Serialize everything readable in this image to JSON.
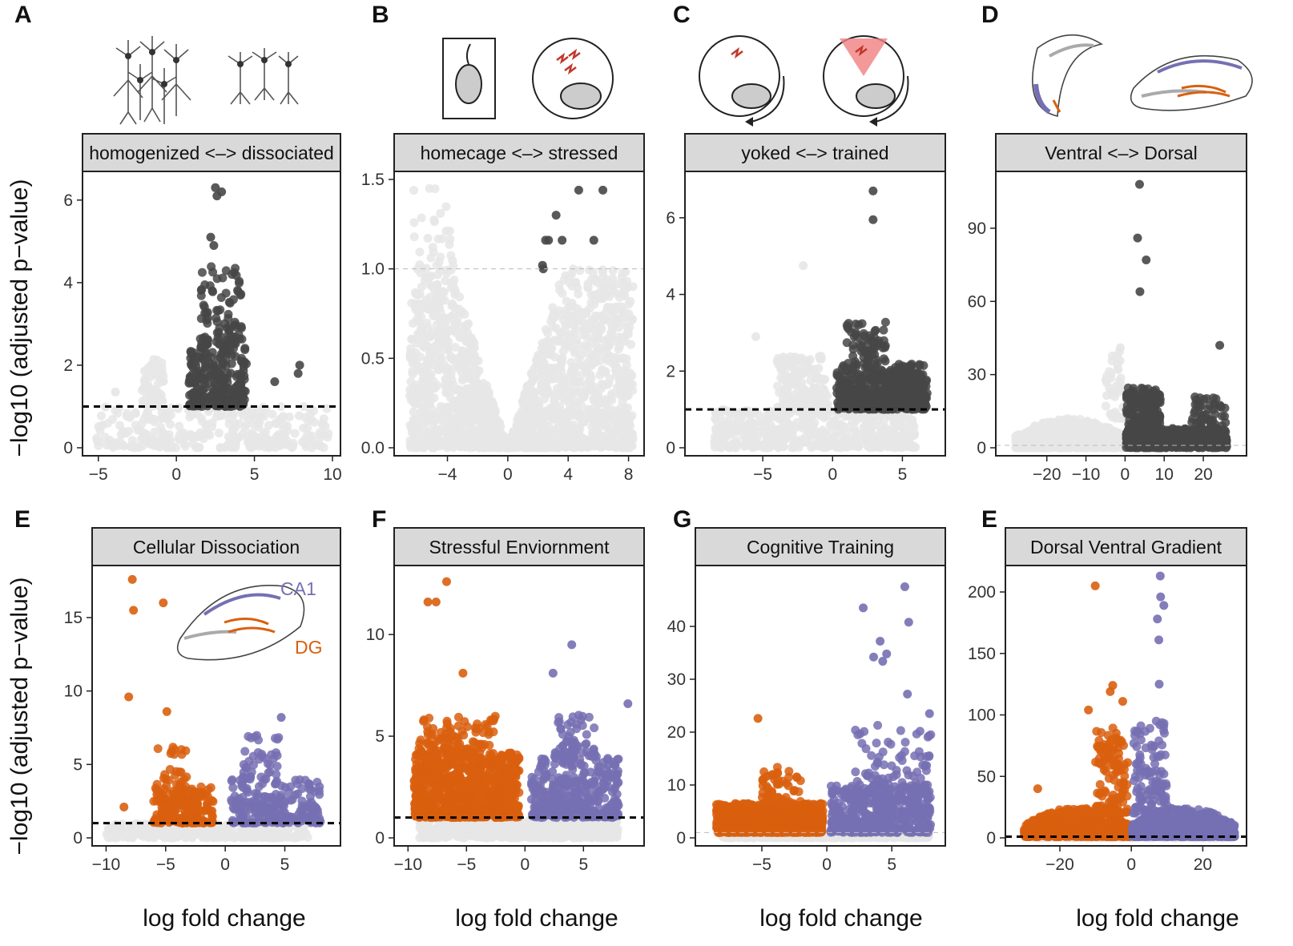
{
  "figure": {
    "ylabel": "−log10 (adjusted p−value)",
    "xlabel": "log fold change",
    "colors": {
      "orange": "#D95F0E",
      "purple": "#7570B3",
      "dark_grey": "#474747",
      "light_grey": "#E6E6E6",
      "strip_fill": "#D9D9D9"
    }
  },
  "panel_letters": [
    "A",
    "B",
    "C",
    "D",
    "E",
    "F",
    "G",
    "E"
  ],
  "inset": {
    "ca1_label": "CA1",
    "dg_label": "DG"
  },
  "chart_data": [
    {
      "type": "scatter",
      "letter": "A",
      "strip": "homogenized <–> dissociated",
      "xlim": [
        -5.5,
        10
      ],
      "ylim": [
        0,
        6.5
      ],
      "xticks": [
        -5,
        0,
        5,
        10
      ],
      "yticks": [
        0,
        2,
        4,
        6
      ],
      "threshold": 1,
      "threshold_style": "bold",
      "groups": [
        {
          "color": "light_grey",
          "n": 300,
          "x": [
            -5.2,
            9.8
          ],
          "y": [
            0,
            1
          ],
          "shape": "flat"
        },
        {
          "color": "light_grey",
          "n": 60,
          "x": [
            -2.2,
            -0.8
          ],
          "y": [
            1,
            2.2
          ],
          "shape": "flat"
        },
        {
          "color": "dark_grey",
          "n": 240,
          "x": [
            0.8,
            4.5
          ],
          "y": [
            1,
            2.5
          ],
          "shape": "flat"
        },
        {
          "color": "dark_grey",
          "n": 90,
          "x": [
            1.5,
            4.2
          ],
          "y": [
            2.5,
            4.4
          ],
          "shape": "flat"
        }
      ],
      "points": [
        {
          "x": 2.5,
          "y": 6.3,
          "color": "dark_grey"
        },
        {
          "x": 2.9,
          "y": 6.2,
          "color": "dark_grey"
        },
        {
          "x": 2.6,
          "y": 6.1,
          "color": "dark_grey"
        },
        {
          "x": 2.2,
          "y": 5.1,
          "color": "dark_grey"
        },
        {
          "x": 2.4,
          "y": 4.9,
          "color": "dark_grey"
        },
        {
          "x": 7.9,
          "y": 2.0,
          "color": "dark_grey"
        },
        {
          "x": 7.8,
          "y": 1.8,
          "color": "dark_grey"
        },
        {
          "x": 6.3,
          "y": 1.6,
          "color": "dark_grey"
        },
        {
          "x": -3.9,
          "y": 1.35,
          "color": "light_grey"
        }
      ]
    },
    {
      "type": "scatter",
      "letter": "B",
      "strip": "homecage <–> stressed",
      "xlim": [
        -7,
        8.5
      ],
      "ylim": [
        0,
        1.5
      ],
      "xticks": [
        -4,
        0,
        4,
        8
      ],
      "yticks": [
        0.0,
        0.5,
        1.0,
        1.5
      ],
      "threshold": 1,
      "threshold_style": "thin",
      "groups": [
        {
          "color": "light_grey",
          "n": 1800,
          "x": [
            -6.5,
            8.3
          ],
          "y": [
            0,
            1.0
          ],
          "shape": "volcano"
        },
        {
          "color": "light_grey",
          "n": 30,
          "x": [
            -6.3,
            -3.5
          ],
          "y": [
            1.0,
            1.45
          ],
          "shape": "flat"
        }
      ],
      "points": [
        {
          "x": 4.7,
          "y": 1.44,
          "color": "dark_grey"
        },
        {
          "x": 6.3,
          "y": 1.44,
          "color": "dark_grey"
        },
        {
          "x": 3.2,
          "y": 1.3,
          "color": "dark_grey"
        },
        {
          "x": 2.5,
          "y": 1.16,
          "color": "dark_grey"
        },
        {
          "x": 2.7,
          "y": 1.16,
          "color": "dark_grey"
        },
        {
          "x": 3.6,
          "y": 1.16,
          "color": "dark_grey"
        },
        {
          "x": 5.7,
          "y": 1.16,
          "color": "dark_grey"
        },
        {
          "x": 2.3,
          "y": 1.02,
          "color": "dark_grey"
        },
        {
          "x": 2.35,
          "y": 1.0,
          "color": "dark_grey"
        }
      ]
    },
    {
      "type": "scatter",
      "letter": "C",
      "strip": "yoked <–> trained",
      "xlim": [
        -10,
        7.5
      ],
      "ylim": [
        0,
        7
      ],
      "xticks": [
        -5,
        0,
        5
      ],
      "yticks": [
        0,
        2,
        4,
        6
      ],
      "threshold": 1,
      "threshold_style": "bold",
      "groups": [
        {
          "color": "light_grey",
          "n": 500,
          "x": [
            -8.5,
            6
          ],
          "y": [
            0,
            1
          ],
          "shape": "flat"
        },
        {
          "color": "light_grey",
          "n": 170,
          "x": [
            -4,
            -0.3
          ],
          "y": [
            1,
            2.4
          ],
          "shape": "flat"
        },
        {
          "color": "dark_grey",
          "n": 500,
          "x": [
            0.3,
            6.8
          ],
          "y": [
            1,
            2.2
          ],
          "shape": "flat"
        },
        {
          "color": "dark_grey",
          "n": 60,
          "x": [
            1.0,
            3.8
          ],
          "y": [
            2.2,
            3.3
          ],
          "shape": "flat"
        }
      ],
      "points": [
        {
          "x": 2.9,
          "y": 6.7,
          "color": "dark_grey"
        },
        {
          "x": 2.9,
          "y": 5.95,
          "color": "dark_grey"
        },
        {
          "x": -2.1,
          "y": 4.75,
          "color": "light_grey"
        },
        {
          "x": -5.5,
          "y": 2.9,
          "color": "light_grey"
        }
      ]
    },
    {
      "type": "scatter",
      "letter": "D",
      "strip": "Ventral <–> Dorsal",
      "xlim": [
        -31,
        29
      ],
      "ylim": [
        0,
        110
      ],
      "xticks": [
        -20,
        -10,
        0,
        10,
        20
      ],
      "yticks": [
        0,
        30,
        60,
        90
      ],
      "threshold": 1,
      "threshold_style": "thin",
      "groups": [
        {
          "color": "light_grey",
          "n": 700,
          "x": [
            -28,
            -0.3
          ],
          "y": [
            0,
            12
          ],
          "shape": "arc"
        },
        {
          "color": "light_grey",
          "n": 40,
          "x": [
            -5,
            -0.5
          ],
          "y": [
            12,
            40
          ],
          "shape": "flat"
        },
        {
          "color": "dark_grey",
          "n": 300,
          "x": [
            0.3,
            9
          ],
          "y": [
            0,
            25
          ],
          "shape": "flat"
        },
        {
          "color": "dark_grey",
          "n": 500,
          "x": [
            0.3,
            26
          ],
          "y": [
            0,
            8
          ],
          "shape": "flat"
        },
        {
          "color": "dark_grey",
          "n": 80,
          "x": [
            17,
            26
          ],
          "y": [
            4,
            22
          ],
          "shape": "flat"
        }
      ],
      "points": [
        {
          "x": 3.7,
          "y": 108,
          "color": "dark_grey"
        },
        {
          "x": 3.2,
          "y": 86,
          "color": "dark_grey"
        },
        {
          "x": 5.4,
          "y": 77,
          "color": "dark_grey"
        },
        {
          "x": 3.8,
          "y": 64,
          "color": "dark_grey"
        },
        {
          "x": 24.2,
          "y": 42,
          "color": "dark_grey"
        },
        {
          "x": -1.2,
          "y": 41,
          "color": "light_grey"
        }
      ]
    },
    {
      "type": "scatter",
      "letter": "E",
      "strip": "Cellular Dissociation",
      "xlim": [
        -10.5,
        9
      ],
      "ylim": [
        0,
        18
      ],
      "xticks": [
        -10,
        -5,
        0,
        5
      ],
      "yticks": [
        0,
        5,
        10,
        15
      ],
      "threshold": 1,
      "threshold_style": "bold",
      "inset": true,
      "groups": [
        {
          "color": "light_grey",
          "n": 350,
          "x": [
            -10,
            7
          ],
          "y": [
            0,
            1
          ],
          "shape": "flat"
        },
        {
          "color": "orange",
          "n": 180,
          "x": [
            -6,
            -1
          ],
          "y": [
            1,
            3.5
          ],
          "shape": "flat"
        },
        {
          "color": "orange",
          "n": 25,
          "x": [
            -6,
            -3
          ],
          "y": [
            3.5,
            6.3
          ],
          "shape": "flat"
        },
        {
          "color": "purple",
          "n": 200,
          "x": [
            0.5,
            8
          ],
          "y": [
            1,
            4
          ],
          "shape": "flat"
        },
        {
          "color": "purple",
          "n": 40,
          "x": [
            1.5,
            4.5
          ],
          "y": [
            4,
            7
          ],
          "shape": "flat"
        }
      ],
      "points": [
        {
          "x": -7.8,
          "y": 17.6,
          "color": "orange"
        },
        {
          "x": -5.2,
          "y": 16.0,
          "color": "orange"
        },
        {
          "x": -7.7,
          "y": 15.5,
          "color": "orange"
        },
        {
          "x": -8.1,
          "y": 9.6,
          "color": "orange"
        },
        {
          "x": -4.9,
          "y": 8.6,
          "color": "orange"
        },
        {
          "x": 4.7,
          "y": 8.2,
          "color": "purple"
        },
        {
          "x": -8.5,
          "y": 2.1,
          "color": "orange"
        }
      ]
    },
    {
      "type": "scatter",
      "letter": "F",
      "strip": "Stressful Enviornment",
      "xlim": [
        -10.5,
        9.5
      ],
      "ylim": [
        0,
        13
      ],
      "xticks": [
        -10,
        -5,
        0,
        5
      ],
      "yticks": [
        0,
        5,
        10
      ],
      "threshold": 1,
      "threshold_style": "bold",
      "groups": [
        {
          "color": "light_grey",
          "n": 500,
          "x": [
            -9,
            8
          ],
          "y": [
            0,
            1
          ],
          "shape": "flat"
        },
        {
          "color": "orange",
          "n": 900,
          "x": [
            -9.5,
            -0.5
          ],
          "y": [
            1,
            4.2
          ],
          "shape": "flat"
        },
        {
          "color": "orange",
          "n": 90,
          "x": [
            -9.2,
            -2.5
          ],
          "y": [
            4.2,
            6
          ],
          "shape": "flat"
        },
        {
          "color": "purple",
          "n": 350,
          "x": [
            0.5,
            8
          ],
          "y": [
            1,
            4
          ],
          "shape": "flat"
        },
        {
          "color": "purple",
          "n": 60,
          "x": [
            2.5,
            6
          ],
          "y": [
            4,
            6.2
          ],
          "shape": "flat"
        }
      ],
      "points": [
        {
          "x": -6.7,
          "y": 12.6,
          "color": "orange"
        },
        {
          "x": -8.3,
          "y": 11.6,
          "color": "orange"
        },
        {
          "x": -7.6,
          "y": 11.6,
          "color": "orange"
        },
        {
          "x": 4.0,
          "y": 9.5,
          "color": "purple"
        },
        {
          "x": -5.3,
          "y": 8.1,
          "color": "orange"
        },
        {
          "x": 2.4,
          "y": 8.1,
          "color": "purple"
        },
        {
          "x": 8.8,
          "y": 6.6,
          "color": "purple"
        }
      ]
    },
    {
      "type": "scatter",
      "letter": "G",
      "strip": "Cognitive Training",
      "xlim": [
        -9.5,
        8.5
      ],
      "ylim": [
        0,
        50
      ],
      "xticks": [
        -5,
        0,
        5
      ],
      "yticks": [
        0,
        10,
        20,
        30,
        40
      ],
      "threshold": 1,
      "threshold_style": "thin",
      "groups": [
        {
          "color": "light_grey",
          "n": 500,
          "x": [
            -8,
            8
          ],
          "y": [
            0,
            1
          ],
          "shape": "flat"
        },
        {
          "color": "orange",
          "n": 900,
          "x": [
            -8.5,
            -0.3
          ],
          "y": [
            1,
            6.5
          ],
          "shape": "flat"
        },
        {
          "color": "orange",
          "n": 50,
          "x": [
            -5,
            -2
          ],
          "y": [
            6.5,
            13.5
          ],
          "shape": "flat"
        },
        {
          "color": "purple",
          "n": 450,
          "x": [
            0.3,
            8
          ],
          "y": [
            1,
            10
          ],
          "shape": "flat"
        },
        {
          "color": "purple",
          "n": 70,
          "x": [
            2,
            8
          ],
          "y": [
            10,
            22
          ],
          "shape": "flat"
        }
      ],
      "points": [
        {
          "x": 6.0,
          "y": 47.5,
          "color": "purple"
        },
        {
          "x": 2.8,
          "y": 43.5,
          "color": "purple"
        },
        {
          "x": 6.3,
          "y": 40.8,
          "color": "purple"
        },
        {
          "x": 4.1,
          "y": 37.2,
          "color": "purple"
        },
        {
          "x": 4.6,
          "y": 34.8,
          "color": "purple"
        },
        {
          "x": 3.6,
          "y": 34.2,
          "color": "purple"
        },
        {
          "x": 4.3,
          "y": 33.4,
          "color": "purple"
        },
        {
          "x": 6.2,
          "y": 27.2,
          "color": "purple"
        },
        {
          "x": -5.3,
          "y": 22.6,
          "color": "orange"
        },
        {
          "x": 7.9,
          "y": 23.5,
          "color": "purple"
        }
      ]
    },
    {
      "type": "scatter",
      "letter": "E",
      "strip": "Dorsal Ventral Gradient",
      "xlim": [
        -33,
        30
      ],
      "ylim": [
        0,
        215
      ],
      "xticks": [
        -20,
        0,
        20
      ],
      "yticks": [
        0,
        50,
        100,
        150,
        200
      ],
      "threshold": 1,
      "threshold_style": "bold",
      "groups": [
        {
          "color": "light_grey",
          "n": 300,
          "x": [
            -28,
            28
          ],
          "y": [
            0,
            2
          ],
          "shape": "flat"
        },
        {
          "color": "orange",
          "n": 600,
          "x": [
            -30,
            -0.3
          ],
          "y": [
            1,
            25
          ],
          "shape": "arc"
        },
        {
          "color": "orange",
          "n": 120,
          "x": [
            -10,
            -1
          ],
          "y": [
            20,
            90
          ],
          "shape": "flat"
        },
        {
          "color": "purple",
          "n": 700,
          "x": [
            0.3,
            29
          ],
          "y": [
            1,
            25
          ],
          "shape": "arc"
        },
        {
          "color": "purple",
          "n": 120,
          "x": [
            0.5,
            10
          ],
          "y": [
            20,
            95
          ],
          "shape": "flat"
        }
      ],
      "points": [
        {
          "x": -10.1,
          "y": 205,
          "color": "orange"
        },
        {
          "x": 8.1,
          "y": 213,
          "color": "purple"
        },
        {
          "x": 8.2,
          "y": 196,
          "color": "purple"
        },
        {
          "x": 9.1,
          "y": 189,
          "color": "purple"
        },
        {
          "x": 7.3,
          "y": 178,
          "color": "purple"
        },
        {
          "x": 7.7,
          "y": 161,
          "color": "purple"
        },
        {
          "x": 7.8,
          "y": 125,
          "color": "purple"
        },
        {
          "x": -5.2,
          "y": 124,
          "color": "orange"
        },
        {
          "x": -5.9,
          "y": 119,
          "color": "orange"
        },
        {
          "x": -2.4,
          "y": 111,
          "color": "orange"
        },
        {
          "x": -12.0,
          "y": 104,
          "color": "orange"
        },
        {
          "x": 8.0,
          "y": 92,
          "color": "purple"
        },
        {
          "x": -26.2,
          "y": 40,
          "color": "orange"
        }
      ]
    }
  ]
}
